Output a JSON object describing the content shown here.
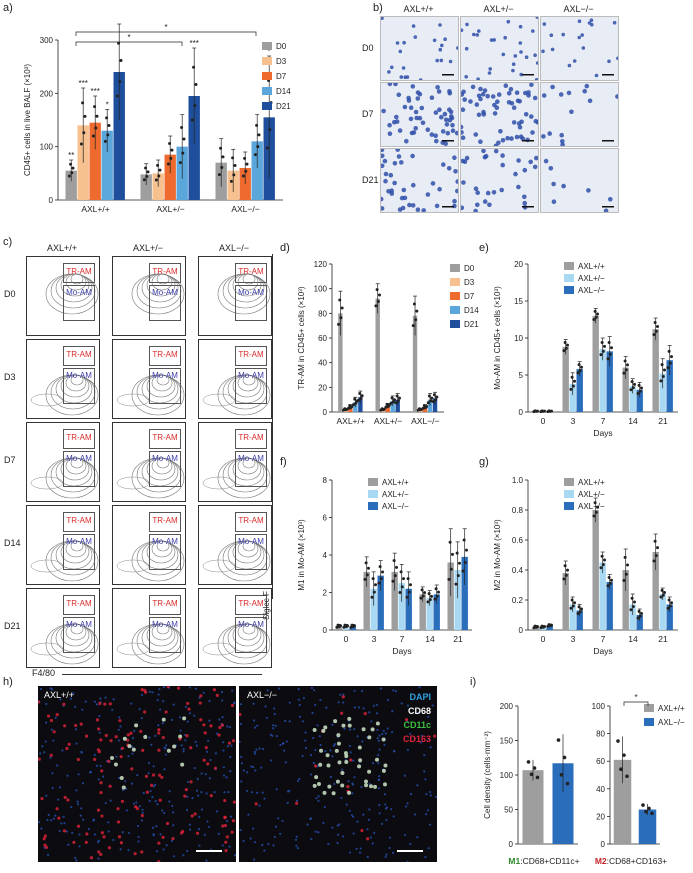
{
  "labels": {
    "a": "a)",
    "b": "b)",
    "c": "c)",
    "d": "d)",
    "e": "e)",
    "f": "f)",
    "g": "g)",
    "h": "h)",
    "i": "i)"
  },
  "genotypes": [
    "AXL+/+",
    "AXL+/−",
    "AXL−/−"
  ],
  "days": [
    "D0",
    "D3",
    "D7",
    "D14",
    "D21"
  ],
  "colors": {
    "D0": "#9e9e9e",
    "D3": "#f6c08f",
    "D7": "#ef6a2e",
    "D14": "#5ba7dc",
    "D21": "#1f4f9c",
    "wt": "#9e9e9e",
    "het": "#a8d8f2",
    "ko": "#2a6dbb"
  },
  "chart_data": [
    {
      "id": "a",
      "type": "bar",
      "ylabel": "CD45+ cells in live BALF (×10³)",
      "ylim": [
        0,
        300
      ],
      "yticks": [
        0,
        100,
        200,
        300
      ],
      "categories": [
        "AXL+/+",
        "AXL+/−",
        "AXL−/−"
      ],
      "series": [
        {
          "name": "D0",
          "values": [
            55,
            48,
            70
          ],
          "err": [
            20,
            20,
            45
          ]
        },
        {
          "name": "D3",
          "values": [
            140,
            50,
            55
          ],
          "err": [
            70,
            25,
            40
          ]
        },
        {
          "name": "D7",
          "values": [
            145,
            85,
            60
          ],
          "err": [
            50,
            35,
            30
          ]
        },
        {
          "name": "D14",
          "values": [
            130,
            100,
            110
          ],
          "err": [
            40,
            60,
            50
          ]
        },
        {
          "name": "D21",
          "values": [
            240,
            195,
            155
          ],
          "err": [
            90,
            90,
            115
          ]
        }
      ],
      "stars": [
        [
          "**",
          "***",
          "***",
          "*",
          ""
        ],
        [
          "",
          "",
          "",
          "",
          "***"
        ],
        [
          "",
          "",
          "",
          "",
          "*"
        ]
      ]
    },
    {
      "id": "d",
      "type": "bar",
      "ylabel": "TR-AM in CD45+ cells (×10³)",
      "ylim": [
        0,
        120
      ],
      "yticks": [
        0,
        20,
        40,
        60,
        80,
        100,
        120
      ],
      "categories": [
        "AXL+/+",
        "AXL+/−",
        "AXL−/−"
      ],
      "series": [
        {
          "name": "D0",
          "values": [
            80,
            92,
            78
          ],
          "err": [
            18,
            12,
            16
          ]
        },
        {
          "name": "D3",
          "values": [
            2,
            2,
            2
          ],
          "err": [
            1,
            1,
            1
          ]
        },
        {
          "name": "D7",
          "values": [
            4,
            5,
            4
          ],
          "err": [
            2,
            2,
            2
          ]
        },
        {
          "name": "D14",
          "values": [
            8,
            9,
            10
          ],
          "err": [
            4,
            4,
            5
          ]
        },
        {
          "name": "D21",
          "values": [
            12,
            10,
            11
          ],
          "err": [
            5,
            5,
            5
          ]
        }
      ]
    },
    {
      "id": "e",
      "type": "bar",
      "ylabel": "Mo-AM in CD45+ cells (×10³)",
      "xlabel": "Days",
      "ylim": [
        0,
        20
      ],
      "yticks": [
        0,
        5,
        10,
        15,
        20
      ],
      "categories": [
        "0",
        "3",
        "7",
        "14",
        "21"
      ],
      "series": [
        {
          "name": "AXL+/+",
          "values": [
            0.1,
            8.8,
            13,
            6,
            11.2
          ],
          "err": [
            0.1,
            1,
            1,
            1.5,
            1.5
          ]
        },
        {
          "name": "AXL+/−",
          "values": [
            0.1,
            3.8,
            8.5,
            3.5,
            5.2
          ],
          "err": [
            0.1,
            1.5,
            1.5,
            1,
            2
          ]
        },
        {
          "name": "AXL−/−",
          "values": [
            0.1,
            5.8,
            8.2,
            3,
            7
          ],
          "err": [
            0.1,
            1,
            2,
            1,
            2
          ]
        }
      ]
    },
    {
      "id": "f",
      "type": "bar",
      "ylabel": "M1 in Mo-AM (×10³)",
      "xlabel": "Days",
      "ylim": [
        0,
        8
      ],
      "yticks": [
        0,
        2,
        4,
        6,
        8
      ],
      "categories": [
        "0",
        "3",
        "7",
        "14",
        "21"
      ],
      "series": [
        {
          "name": "AXL+/+",
          "values": [
            0.2,
            3.1,
            3.1,
            1.9,
            3.6
          ],
          "err": [
            0.1,
            0.8,
            1,
            0.4,
            1.8
          ]
        },
        {
          "name": "AXL+/−",
          "values": [
            0.2,
            2.2,
            2.5,
            1.7,
            3.2
          ],
          "err": [
            0.1,
            0.9,
            1,
            0.4,
            1.5
          ]
        },
        {
          "name": "AXL−/−",
          "values": [
            0.2,
            2.9,
            2.2,
            1.9,
            3.9
          ],
          "err": [
            0.1,
            0.8,
            0.9,
            0.5,
            1.5
          ]
        }
      ]
    },
    {
      "id": "g",
      "type": "bar",
      "ylabel": "M2 in Mo-AM (×10³)",
      "xlabel": "Days",
      "ylim": [
        0,
        1.0
      ],
      "yticks": [
        "0",
        "0.2",
        "0.4",
        "0.6",
        "0.8",
        "1.0"
      ],
      "categories": [
        "0",
        "3",
        "7",
        "14",
        "21"
      ],
      "series": [
        {
          "name": "AXL+/+",
          "values": [
            0.02,
            0.38,
            0.8,
            0.4,
            0.52
          ],
          "err": [
            0.01,
            0.08,
            0.08,
            0.14,
            0.12
          ]
        },
        {
          "name": "AXL+/−",
          "values": [
            0.02,
            0.17,
            0.45,
            0.17,
            0.24
          ],
          "err": [
            0.01,
            0.05,
            0.07,
            0.07,
            0.04
          ]
        },
        {
          "name": "AXL−/−",
          "values": [
            0.03,
            0.13,
            0.32,
            0.1,
            0.17
          ],
          "err": [
            0.01,
            0.04,
            0.05,
            0.04,
            0.05
          ]
        }
      ]
    },
    {
      "id": "i1",
      "type": "bar",
      "ylabel": "Cell density (cells·mm⁻²)",
      "ylim": [
        0,
        200
      ],
      "yticks": [
        0,
        50,
        100,
        150,
        200
      ],
      "categories": [
        "AXL+/+",
        "AXL−/−"
      ],
      "values": [
        107,
        117
      ],
      "err": [
        15,
        42
      ],
      "xlabel_prefix": "M1",
      "xlabel_rest": ":CD68+CD11c+"
    },
    {
      "id": "i2",
      "type": "bar",
      "ylim": [
        0,
        100
      ],
      "yticks": [
        0,
        20,
        40,
        60,
        80,
        100
      ],
      "categories": [
        "AXL+/+",
        "AXL−/−"
      ],
      "values": [
        61,
        25
      ],
      "err": [
        17,
        4
      ],
      "xlabel_prefix": "M2",
      "xlabel_rest": ":CD68+CD163+"
    }
  ],
  "panel_b": {
    "cols": [
      "AXL+/+",
      "AXL+/−",
      "AXL−/−"
    ],
    "rows": [
      "D0",
      "D7",
      "D21"
    ]
  },
  "panel_c": {
    "cols": [
      "AXL+/+",
      "AXL+/−",
      "AXL−/−"
    ],
    "rows": [
      "D0",
      "D3",
      "D7",
      "D14",
      "D21"
    ],
    "gate_top": "TR-AM",
    "gate_bottom": "Mo-AM",
    "xaxis": "F4/80",
    "yaxis": "Siglec F"
  },
  "panel_h": {
    "left": "AXL+/+",
    "right": "AXL−/−",
    "stains": [
      "DAPI",
      "CD68",
      "CD11c",
      "CD163"
    ],
    "stain_colors": [
      "#2fa0e0",
      "#ffffff",
      "#3fbf3f",
      "#e0233a"
    ]
  },
  "legend_days": [
    "D0",
    "D3",
    "D7",
    "D14",
    "D21"
  ],
  "legend_geno": [
    "AXL+/+",
    "AXL+/−",
    "AXL−/−"
  ]
}
